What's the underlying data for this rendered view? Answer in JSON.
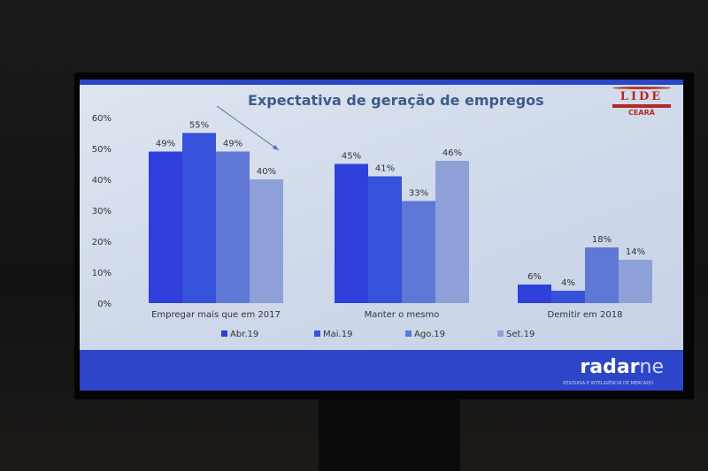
{
  "chart_data": {
    "type": "bar",
    "title": "Expectativa de geração de empregos",
    "categories": [
      "Empregar mais que em 2017",
      "Manter o mesmo",
      "Demitir em 2018"
    ],
    "series": [
      {
        "name": "Abr.19",
        "values": [
          49,
          45,
          6
        ],
        "color": "#2f3fdc"
      },
      {
        "name": "Mai.19",
        "values": [
          55,
          41,
          4
        ],
        "color": "#3652db"
      },
      {
        "name": "Ago.19",
        "values": [
          49,
          33,
          18
        ],
        "color": "#5f78d6"
      },
      {
        "name": "Set.19",
        "values": [
          40,
          46,
          14
        ],
        "color": "#8ea0d8"
      }
    ],
    "value_suffix": "%",
    "yticks": [
      "0%",
      "10%",
      "20%",
      "30%",
      "40%",
      "50%",
      "60%"
    ],
    "ylim": [
      0,
      60
    ],
    "legend": "bottom",
    "grid": false
  },
  "logo": {
    "name": "LIDE",
    "region": "CEARÁ"
  },
  "footer": {
    "brand_a": "radar",
    "brand_b": "ne",
    "tagline": "PESQUISA E INTELIGÊNCIA DE MERCADO"
  }
}
